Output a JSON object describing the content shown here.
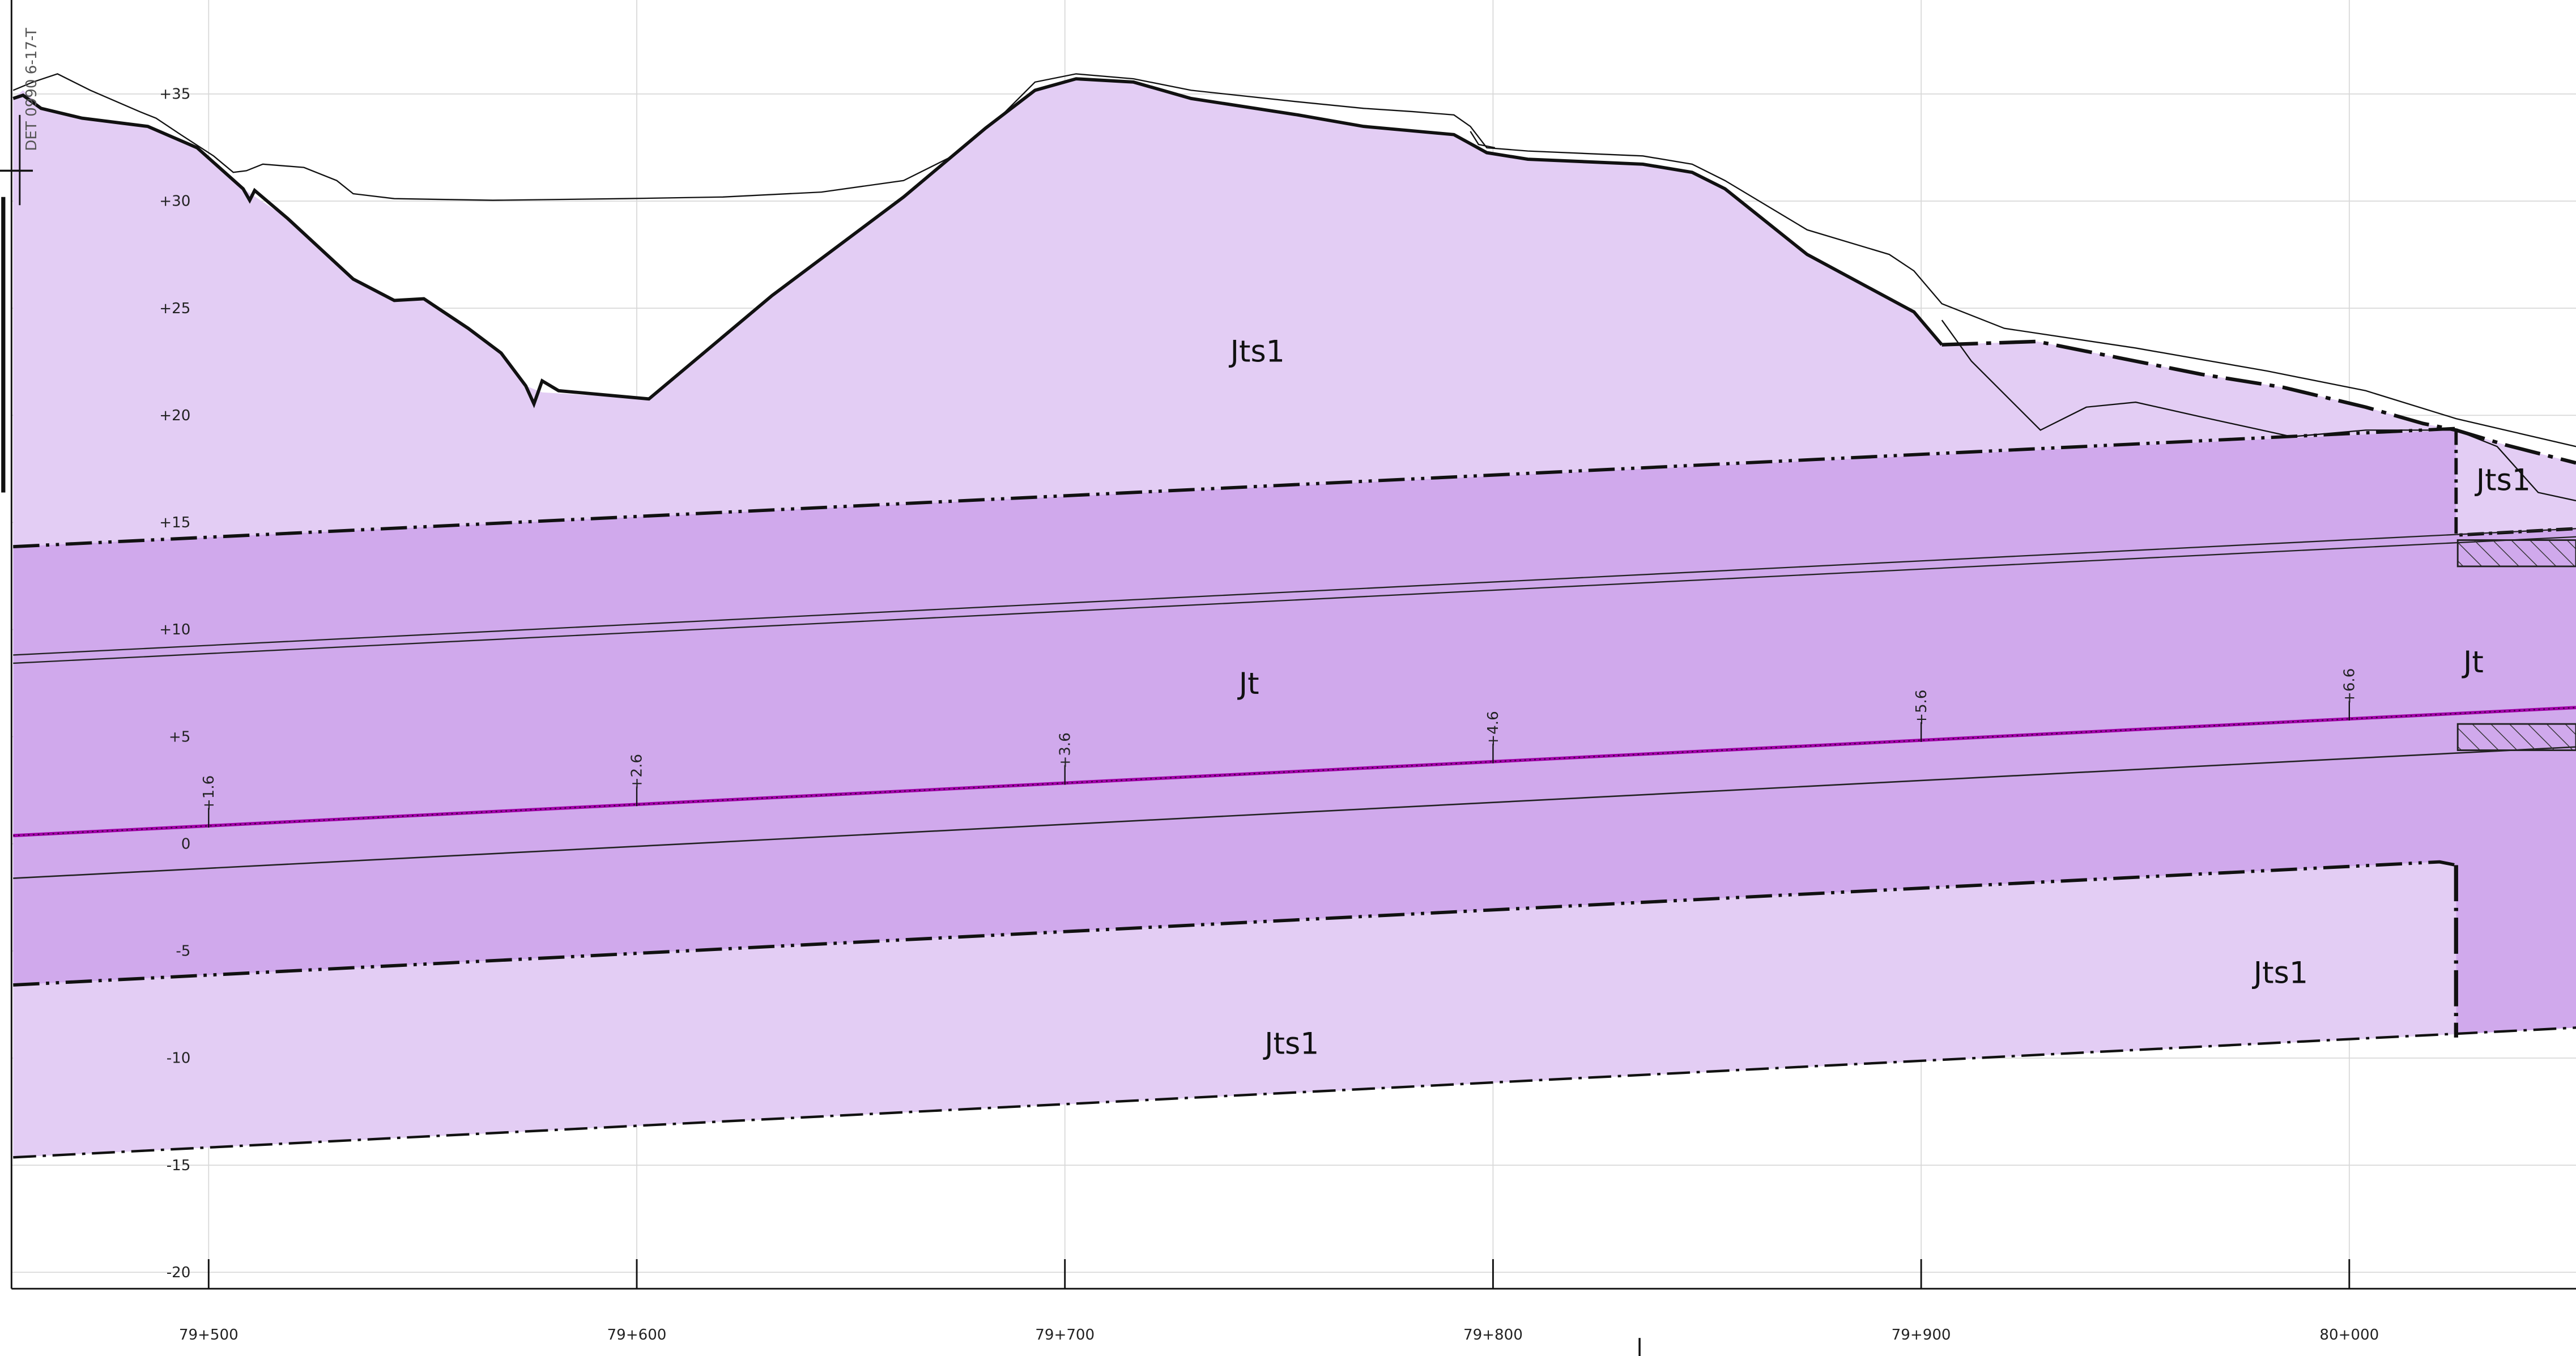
{
  "drawing": {
    "stamp_text": "DET 0990 6-17-T",
    "colors": {
      "layer_light": "#e3cdf4",
      "layer_dark": "#d0a9ec",
      "line": "#111111",
      "tunnel_line": "#a000a8",
      "grid": "#d8d8d8"
    },
    "chainage_axis": {
      "ticks": [
        {
          "chainage": 79500,
          "label": "79+500"
        },
        {
          "chainage": 79600,
          "label": "79+600"
        },
        {
          "chainage": 79700,
          "label": "79+700"
        },
        {
          "chainage": 79800,
          "label": "79+800"
        },
        {
          "chainage": 79900,
          "label": "79+900"
        },
        {
          "chainage": 80000,
          "label": "80+000"
        }
      ]
    },
    "elevation_axis": {
      "ticks": [
        {
          "elevation": 35,
          "label": "+35"
        },
        {
          "elevation": 30,
          "label": "+30"
        },
        {
          "elevation": 25,
          "label": "+25"
        },
        {
          "elevation": 20,
          "label": "+20"
        },
        {
          "elevation": 15,
          "label": "+15"
        },
        {
          "elevation": 10,
          "label": "+10"
        },
        {
          "elevation": 5,
          "label": "+5"
        },
        {
          "elevation": 0,
          "label": "0"
        },
        {
          "elevation": -5,
          "label": "-5"
        },
        {
          "elevation": -10,
          "label": "-10"
        },
        {
          "elevation": -15,
          "label": "-15"
        },
        {
          "elevation": -20,
          "label": "-20"
        }
      ]
    },
    "grade_markers": [
      {
        "chainage": 79500,
        "elevation": 1.6,
        "label": "+1.6"
      },
      {
        "chainage": 79600,
        "elevation": 2.6,
        "label": "+2.6"
      },
      {
        "chainage": 79700,
        "elevation": 3.6,
        "label": "+3.6"
      },
      {
        "chainage": 79800,
        "elevation": 4.6,
        "label": "+4.6"
      },
      {
        "chainage": 79900,
        "elevation": 5.6,
        "label": "+5.6"
      },
      {
        "chainage": 80000,
        "elevation": 6.6,
        "label": "+6.6"
      }
    ],
    "geology_labels": [
      {
        "text": "Jts1",
        "chainage": 79745,
        "elevation": 22.5
      },
      {
        "text": "Jts1",
        "chainage": 80036,
        "elevation": 16.5
      },
      {
        "text": "Jt",
        "chainage": 79743,
        "elevation": 7.0
      },
      {
        "text": "Jt",
        "chainage": 80029,
        "elevation": 8.0
      },
      {
        "text": "Jts1",
        "chainage": 79984,
        "elevation": -6.5
      },
      {
        "text": "Jts1",
        "chainage": 79753,
        "elevation": -9.8
      }
    ]
  }
}
